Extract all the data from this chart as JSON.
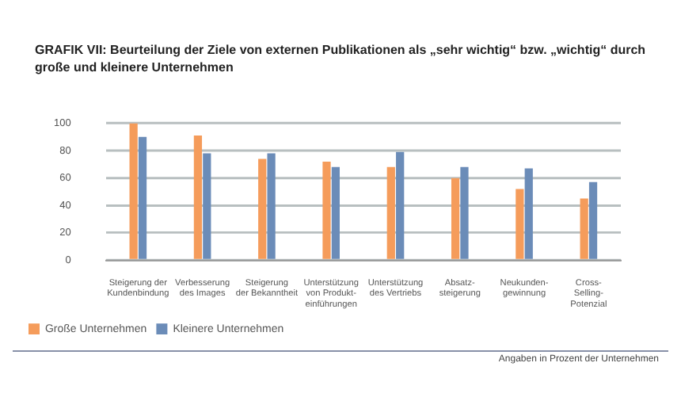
{
  "chart_data": {
    "type": "bar",
    "title": "GRAFIK VII: Beurteilung der Ziele von externen Publikationen als „sehr wichtig“ bzw. „wichtig“ durch große und kleinere Unternehmen",
    "categories": [
      "Steigerung der\nKundenbindung",
      "Verbesserung\ndes Images",
      "Steigerung\nder Bekanntheit",
      "Unterstützung\nvon Produkt-\neinführungen",
      "Unterstützung\ndes Vertriebs",
      "Absatz-\nsteigerung",
      "Neukunden-\ngewinnung",
      "Cross-\nSelling-\nPotenzial"
    ],
    "series": [
      {
        "name": "Große Unternehmen",
        "color": "#f59c5b",
        "values": [
          100,
          91,
          74,
          72,
          68,
          60,
          52,
          45
        ]
      },
      {
        "name": "Kleinere Unternehmen",
        "color": "#6b8cb8",
        "values": [
          90,
          78,
          78,
          68,
          79,
          68,
          67,
          57
        ]
      }
    ],
    "ylim": [
      0,
      100
    ],
    "yticks": [
      0,
      20,
      40,
      60,
      80,
      100
    ],
    "grid": "y",
    "legend": "bottom left",
    "annotations": [
      "Angaben in Prozent der Unternehmen"
    ]
  }
}
